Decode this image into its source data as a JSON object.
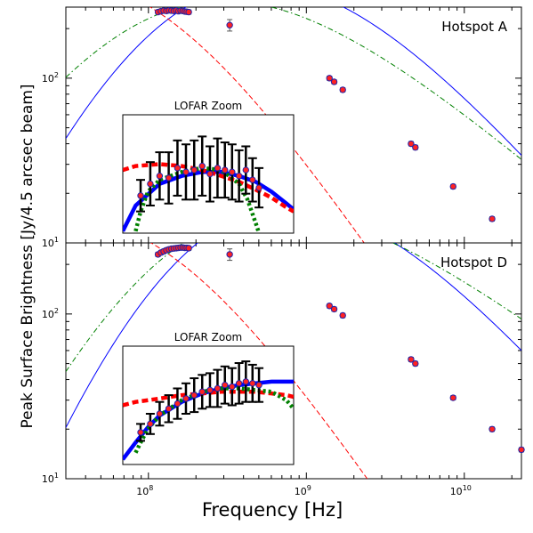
{
  "figure": {
    "ylabel": "Peak Surface Brightness [Jy/4.5 arcsec beam]",
    "xlabel": "Frequency [Hz]"
  },
  "axes": {
    "x_scale": "log",
    "y_scale": "log",
    "xlim": [
      30000000.0,
      23000000000.0
    ],
    "ylim": [
      10,
      270
    ],
    "x_ticks": [
      {
        "value": 100000000.0,
        "base": "10",
        "exp": "8"
      },
      {
        "value": 1000000000.0,
        "base": "10",
        "exp": "9"
      },
      {
        "value": 10000000000.0,
        "base": "10",
        "exp": "10"
      }
    ],
    "y_ticks": [
      {
        "value": 10,
        "base": "10",
        "exp": "1"
      },
      {
        "value": 100,
        "base": "10",
        "exp": "2"
      }
    ]
  },
  "inset_title": "LOFAR Zoom",
  "colors": {
    "model_blue": "#0000ff",
    "model_red": "#ff0000",
    "model_green": "#008000",
    "marker_fill": "#ff2222",
    "marker_edge": "#2222aa",
    "errorbar": "#000000"
  },
  "chart_data": [
    {
      "type": "scatter",
      "panel_label": "Hotspot A",
      "xscale": "log",
      "yscale": "log",
      "xlim": [
        30000000.0,
        23000000000.0
      ],
      "ylim": [
        10,
        270
      ],
      "points": {
        "x": [
          115000000.0,
          120000000.0,
          125000000.0,
          130000000.0,
          135000000.0,
          140000000.0,
          145000000.0,
          150000000.0,
          155000000.0,
          160000000.0,
          165000000.0,
          170000000.0,
          175000000.0,
          180000000.0,
          327000000.0,
          1400000000.0,
          1500000000.0,
          1700000000.0,
          4600000000.0,
          4900000000.0,
          8500000000.0,
          15000000000.0
        ],
        "y": [
          252,
          255,
          257,
          256,
          258,
          257,
          256,
          258,
          255,
          257,
          256,
          254,
          253,
          252,
          210,
          100,
          95,
          85,
          40,
          38,
          22,
          14
        ],
        "yerr_rel": [
          0.03,
          0.03,
          0.03,
          0.03,
          0.03,
          0.03,
          0.03,
          0.03,
          0.03,
          0.03,
          0.03,
          0.03,
          0.03,
          0.03,
          0.08,
          0.03,
          0.03,
          0.03,
          0.03,
          0.03,
          0.03,
          0.03
        ]
      },
      "models": [
        {
          "style": "solid",
          "color": "#0000ff",
          "peak_x": 160000000.0,
          "peak_y": 258,
          "low_slope": 2.4,
          "high_slope": -1.15,
          "smooth": 1.6
        },
        {
          "style": "dashed",
          "color": "#ff0000",
          "peak_x": 115000000.0,
          "peak_y": 252,
          "low_slope": 0.12,
          "high_slope": -1.4,
          "smooth": 1.0
        },
        {
          "style": "dashdot",
          "color": "#008000",
          "peak_x": 130000000.0,
          "peak_y": 255,
          "low_slope": 1.5,
          "high_slope": -0.82,
          "smooth": 1.4
        }
      ],
      "inset": {
        "xlim": [
          105000000.0,
          195000000.0
        ],
        "ylim": [
          225,
          285
        ],
        "points": {
          "x": [
            112000000.0,
            116000000.0,
            120000000.0,
            124000000.0,
            128000000.0,
            132000000.0,
            136000000.0,
            140000000.0,
            144000000.0,
            148000000.0,
            152000000.0,
            156000000.0,
            160000000.0,
            164000000.0,
            168000000.0,
            172000000.0
          ],
          "y": [
            244,
            250,
            254,
            253,
            258,
            256,
            257,
            259,
            255,
            258,
            257,
            256,
            254,
            257,
            252,
            248
          ],
          "yerr": [
            8,
            11,
            12,
            13,
            14,
            14,
            15,
            15,
            14,
            15,
            14,
            14,
            13,
            12,
            11,
            10
          ]
        },
        "models": [
          {
            "style": "solid",
            "color": "#0000ff",
            "x": [
              105000000.0,
              110000000.0,
              120000000.0,
              130000000.0,
              140000000.0,
              150000000.0,
              160000000.0,
              170000000.0,
              180000000.0,
              190000000.0,
              195000000.0
            ],
            "y": [
              226,
              239,
              250,
              254,
              256,
              256,
              254,
              251,
              246,
              240,
              237
            ]
          },
          {
            "style": "dashed",
            "color": "#ff0000",
            "x": [
              105000000.0,
              110000000.0,
              120000000.0,
              130000000.0,
              140000000.0,
              150000000.0,
              160000000.0,
              170000000.0,
              180000000.0,
              190000000.0,
              195000000.0
            ],
            "y": [
              257,
              259,
              260,
              259,
              257,
              254,
              251,
              247,
              243,
              238,
              236
            ]
          },
          {
            "style": "dotted",
            "color": "#008000",
            "x": [
              110000000.0,
              112000000.0,
              115000000.0,
              120000000.0,
              130000000.0,
              140000000.0,
              150000000.0,
              160000000.0,
              165000000.0,
              170000000.0,
              172000000.0
            ],
            "y": [
              226,
              236,
              246,
              252,
              256,
              258,
              257,
              250,
              242,
              230,
              225
            ]
          }
        ]
      }
    },
    {
      "type": "scatter",
      "panel_label": "Hotspot D",
      "xscale": "log",
      "yscale": "log",
      "xlim": [
        30000000.0,
        23000000000.0
      ],
      "ylim": [
        10,
        270
      ],
      "points": {
        "x": [
          115000000.0,
          120000000.0,
          125000000.0,
          130000000.0,
          135000000.0,
          140000000.0,
          145000000.0,
          150000000.0,
          155000000.0,
          160000000.0,
          165000000.0,
          170000000.0,
          175000000.0,
          180000000.0,
          327000000.0,
          1400000000.0,
          1500000000.0,
          1700000000.0,
          4600000000.0,
          4900000000.0,
          8500000000.0,
          15000000000.0,
          23000000000.0
        ],
        "y": [
          230,
          236,
          240,
          244,
          247,
          249,
          250,
          251,
          252,
          253,
          253,
          252,
          252,
          251,
          230,
          112,
          107,
          98,
          53,
          50,
          31,
          20,
          15
        ],
        "yerr_rel": [
          0.03,
          0.03,
          0.03,
          0.03,
          0.03,
          0.03,
          0.03,
          0.03,
          0.03,
          0.03,
          0.03,
          0.03,
          0.03,
          0.03,
          0.08,
          0.03,
          0.03,
          0.03,
          0.03,
          0.03,
          0.03,
          0.03,
          0.03
        ]
      },
      "models": [
        {
          "style": "solid",
          "color": "#0000ff",
          "peak_x": 190000000.0,
          "peak_y": 254,
          "low_slope": 2.8,
          "high_slope": -1.15,
          "smooth": 1.6
        },
        {
          "style": "dashed",
          "color": "#ff0000",
          "peak_x": 120000000.0,
          "peak_y": 248,
          "low_slope": 0.15,
          "high_slope": -1.4,
          "smooth": 1.0
        },
        {
          "style": "dashdot",
          "color": "#008000",
          "peak_x": 150000000.0,
          "peak_y": 252,
          "low_slope": 2.1,
          "high_slope": -0.72,
          "smooth": 1.4
        }
      ],
      "inset": {
        "xlim": [
          105000000.0,
          195000000.0
        ],
        "ylim": [
          205,
          275
        ],
        "points": {
          "x": [
            112000000.0,
            116000000.0,
            120000000.0,
            124000000.0,
            128000000.0,
            132000000.0,
            136000000.0,
            140000000.0,
            144000000.0,
            148000000.0,
            152000000.0,
            156000000.0,
            160000000.0,
            164000000.0,
            168000000.0,
            172000000.0
          ],
          "y": [
            224,
            229,
            235,
            238,
            241,
            244,
            246,
            248,
            249,
            250,
            252,
            251,
            253,
            254,
            253,
            252
          ],
          "yerr": [
            5,
            6,
            7,
            8,
            9,
            9,
            10,
            10,
            10,
            11,
            11,
            11,
            12,
            12,
            11,
            10
          ]
        },
        "models": [
          {
            "style": "solid",
            "color": "#0000ff",
            "x": [
              105000000.0,
              110000000.0,
              115000000.0,
              120000000.0,
              130000000.0,
              140000000.0,
              150000000.0,
              160000000.0,
              170000000.0,
              180000000.0,
              190000000.0,
              195000000.0
            ],
            "y": [
              208,
              218,
              227,
              234,
              242,
              247,
              250,
              252,
              253,
              254,
              254,
              254
            ]
          },
          {
            "style": "dashed",
            "color": "#ff0000",
            "x": [
              105000000.0,
              110000000.0,
              120000000.0,
              130000000.0,
              140000000.0,
              150000000.0,
              160000000.0,
              170000000.0,
              180000000.0,
              190000000.0,
              195000000.0
            ],
            "y": [
              240,
              242,
              244,
              246,
              247,
              248,
              248,
              248,
              247,
              246,
              245
            ]
          },
          {
            "style": "dotted",
            "color": "#008000",
            "x": [
              110000000.0,
              112000000.0,
              115000000.0,
              120000000.0,
              130000000.0,
              140000000.0,
              150000000.0,
              160000000.0,
              170000000.0,
              180000000.0,
              190000000.0,
              195000000.0
            ],
            "y": [
              212,
              218,
              226,
              234,
              243,
              248,
              250,
              250,
              249,
              248,
              243,
              238
            ]
          }
        ]
      }
    }
  ]
}
